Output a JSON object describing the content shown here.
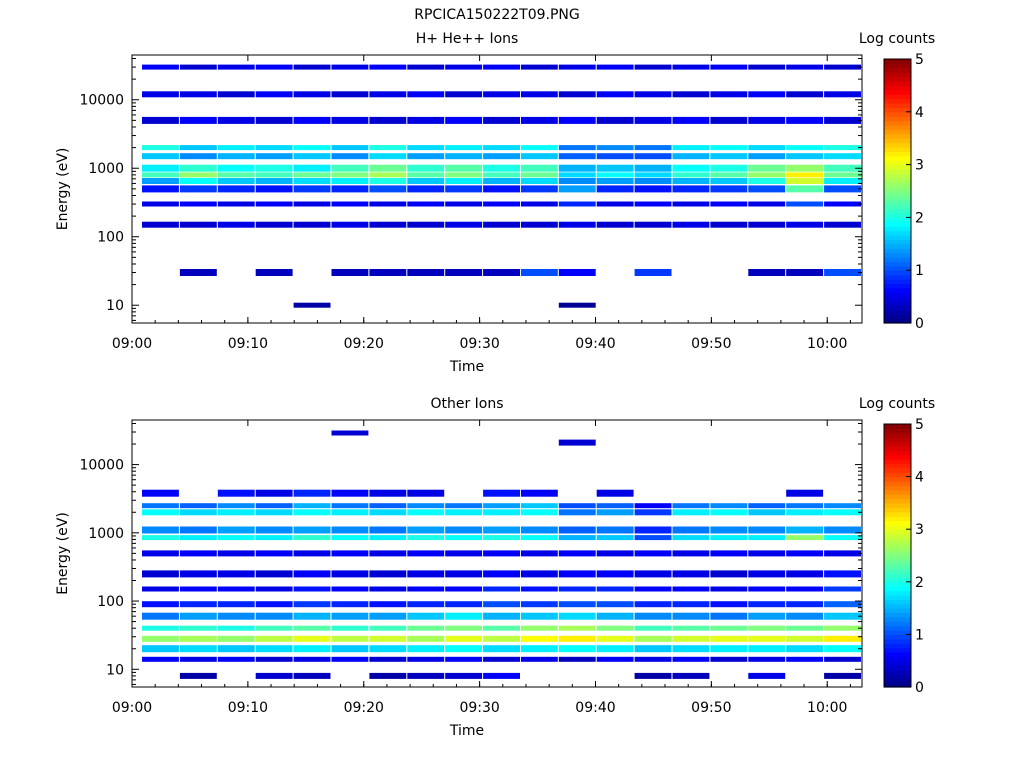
{
  "figure_title": "RPCICA150222T09.PNG",
  "chart_data": [
    {
      "type": "heatmap",
      "title": "H+ He++ Ions",
      "xlabel": "Time",
      "ylabel": "Energy (eV)",
      "x_ticks": [
        "09:00",
        "09:10",
        "09:20",
        "09:30",
        "09:40",
        "09:50",
        "10:00"
      ],
      "y_scale": "log",
      "y_ticks": [
        "10",
        "100",
        "1000",
        "10000"
      ],
      "colorbar": {
        "label": "Log counts",
        "ticks": [
          "0",
          "1",
          "2",
          "3",
          "4",
          "5"
        ],
        "range": [
          0,
          5
        ],
        "colormap": "jet"
      },
      "time_bins": [
        "09:02",
        "09:05",
        "09:08",
        "09:12",
        "09:15",
        "09:18",
        "09:21",
        "09:24",
        "09:28",
        "09:31",
        "09:34",
        "09:37",
        "09:40",
        "09:44",
        "09:47",
        "09:50",
        "09:53",
        "09:57",
        "10:00"
      ],
      "bands": [
        {
          "energy_eV": 30000,
          "log_counts": [
            0.6,
            0.4,
            0.5,
            0.6,
            0.4,
            0.5,
            0.6,
            0.4,
            0.5,
            0.6,
            0.4,
            0.5,
            0.6,
            0.4,
            0.5,
            0.6,
            0.4,
            0.5,
            0.4
          ]
        },
        {
          "energy_eV": 12000,
          "log_counts": [
            0.5,
            0.5,
            0.4,
            0.6,
            0.5,
            0.4,
            0.5,
            0.6,
            0.4,
            0.5,
            0.5,
            0.4,
            0.6,
            0.5,
            0.4,
            0.5,
            0.6,
            0.4,
            0.5
          ]
        },
        {
          "energy_eV": 5000,
          "log_counts": [
            0.4,
            0.6,
            0.5,
            0.4,
            0.6,
            0.5,
            0.4,
            0.5,
            0.6,
            0.4,
            0.5,
            0.6,
            0.4,
            0.5,
            0.6,
            0.4,
            0.5,
            0.6,
            0.4
          ]
        },
        {
          "energy_eV": 2000,
          "log_counts": [
            2.0,
            1.6,
            1.8,
            1.7,
            1.9,
            1.6,
            2.0,
            1.7,
            1.8,
            1.7,
            1.9,
            1.2,
            1.3,
            1.2,
            1.8,
            1.9,
            1.7,
            1.9,
            2.0
          ]
        },
        {
          "energy_eV": 1500,
          "log_counts": [
            1.6,
            1.3,
            1.5,
            1.4,
            1.6,
            1.3,
            1.7,
            1.4,
            1.5,
            1.4,
            1.6,
            1.1,
            1.0,
            1.0,
            1.5,
            1.6,
            1.4,
            1.6,
            1.7
          ]
        },
        {
          "energy_eV": 1000,
          "log_counts": [
            1.8,
            2.1,
            1.9,
            2.0,
            1.8,
            2.2,
            2.4,
            2.1,
            2.3,
            2.0,
            2.2,
            1.5,
            1.6,
            1.5,
            1.9,
            2.0,
            2.4,
            2.6,
            2.2
          ]
        },
        {
          "energy_eV": 800,
          "log_counts": [
            2.2,
            2.6,
            2.3,
            2.2,
            2.4,
            2.5,
            2.7,
            2.3,
            2.5,
            2.2,
            2.4,
            1.7,
            1.9,
            1.7,
            2.1,
            2.3,
            2.6,
            3.2,
            2.4
          ]
        },
        {
          "energy_eV": 650,
          "log_counts": [
            1.4,
            1.9,
            1.6,
            1.5,
            1.7,
            1.8,
            2.0,
            1.6,
            1.8,
            1.5,
            1.7,
            1.3,
            1.4,
            1.3,
            1.5,
            1.6,
            2.0,
            2.9,
            1.8
          ]
        },
        {
          "energy_eV": 500,
          "log_counts": [
            0.7,
            0.9,
            0.8,
            0.7,
            0.9,
            0.8,
            1.0,
            0.8,
            0.9,
            0.7,
            0.9,
            1.4,
            0.8,
            0.7,
            0.8,
            0.9,
            1.0,
            2.3,
            1.0
          ]
        },
        {
          "energy_eV": 300,
          "log_counts": [
            0.5,
            0.6,
            0.5,
            0.6,
            0.5,
            0.6,
            0.5,
            0.6,
            0.5,
            0.6,
            0.5,
            0.8,
            0.5,
            0.6,
            0.5,
            0.6,
            0.5,
            1.0,
            0.6
          ]
        },
        {
          "energy_eV": 150,
          "log_counts": [
            0.4,
            0.4,
            0.5,
            0.4,
            0.4,
            0.5,
            0.4,
            0.4,
            0.5,
            0.4,
            0.4,
            0.5,
            0.4,
            0.4,
            0.5,
            0.4,
            0.4,
            0.5,
            0.4
          ]
        },
        {
          "energy_eV": 30,
          "log_counts": [
            null,
            0.3,
            null,
            0.3,
            null,
            0.3,
            0.3,
            0.3,
            0.3,
            0.3,
            1.0,
            0.6,
            null,
            0.9,
            null,
            null,
            0.3,
            0.3,
            1.0
          ]
        },
        {
          "energy_eV": 10,
          "log_counts": [
            null,
            null,
            null,
            null,
            0.2,
            null,
            null,
            null,
            null,
            null,
            null,
            0.1,
            null,
            null,
            null,
            null,
            null,
            null,
            null
          ]
        }
      ]
    },
    {
      "type": "heatmap",
      "title": "Other Ions",
      "xlabel": "Time",
      "ylabel": "Energy (eV)",
      "x_ticks": [
        "09:00",
        "09:10",
        "09:20",
        "09:30",
        "09:40",
        "09:50",
        "10:00"
      ],
      "y_scale": "log",
      "y_ticks": [
        "10",
        "100",
        "1000",
        "10000"
      ],
      "colorbar": {
        "label": "Log counts",
        "ticks": [
          "0",
          "1",
          "2",
          "3",
          "4",
          "5"
        ],
        "range": [
          0,
          5
        ],
        "colormap": "jet"
      },
      "time_bins": [
        "09:02",
        "09:05",
        "09:08",
        "09:12",
        "09:15",
        "09:18",
        "09:21",
        "09:24",
        "09:28",
        "09:31",
        "09:34",
        "09:37",
        "09:40",
        "09:44",
        "09:47",
        "09:50",
        "09:53",
        "09:57",
        "10:00"
      ],
      "bands": [
        {
          "energy_eV": 29000,
          "log_counts": [
            null,
            null,
            null,
            null,
            null,
            0.4,
            null,
            null,
            null,
            null,
            null,
            null,
            null,
            null,
            null,
            null,
            null,
            null,
            null
          ]
        },
        {
          "energy_eV": 21000,
          "log_counts": [
            null,
            null,
            null,
            null,
            null,
            null,
            null,
            null,
            null,
            null,
            null,
            0.4,
            null,
            null,
            null,
            null,
            null,
            null,
            null
          ]
        },
        {
          "energy_eV": 3800,
          "log_counts": [
            0.6,
            null,
            0.7,
            0.5,
            0.8,
            0.6,
            0.5,
            0.5,
            null,
            0.7,
            0.6,
            null,
            0.5,
            null,
            null,
            null,
            null,
            0.5,
            null
          ]
        },
        {
          "energy_eV": 2500,
          "log_counts": [
            1.2,
            1.1,
            1.3,
            1.1,
            1.5,
            1.2,
            1.1,
            1.3,
            1.2,
            1.4,
            1.6,
            1.0,
            1.1,
            0.6,
            1.2,
            1.3,
            1.1,
            1.2,
            1.3
          ]
        },
        {
          "energy_eV": 2000,
          "log_counts": [
            1.9,
            1.7,
            1.8,
            1.7,
            1.9,
            1.8,
            1.7,
            1.9,
            1.8,
            1.8,
            1.9,
            1.2,
            1.4,
            0.9,
            1.8,
            1.9,
            1.6,
            1.8,
            1.9
          ]
        },
        {
          "energy_eV": 1100,
          "log_counts": [
            1.3,
            1.2,
            1.4,
            1.3,
            1.4,
            1.3,
            1.2,
            1.4,
            1.3,
            1.4,
            1.3,
            1.1,
            1.2,
            0.8,
            1.2,
            1.3,
            1.3,
            1.5,
            1.3
          ]
        },
        {
          "energy_eV": 850,
          "log_counts": [
            2.0,
            1.8,
            1.9,
            1.8,
            2.1,
            1.9,
            1.8,
            2.0,
            1.9,
            2.0,
            1.9,
            1.5,
            1.6,
            1.0,
            1.7,
            1.8,
            1.8,
            2.6,
            1.9
          ]
        },
        {
          "energy_eV": 500,
          "log_counts": [
            0.5,
            0.6,
            0.5,
            0.6,
            0.5,
            0.6,
            0.5,
            0.6,
            0.5,
            0.6,
            0.5,
            0.6,
            0.5,
            0.6,
            0.5,
            0.6,
            0.5,
            0.6,
            0.5
          ]
        },
        {
          "energy_eV": 250,
          "log_counts": [
            0.4,
            0.5,
            0.5,
            0.4,
            0.6,
            0.5,
            0.4,
            0.5,
            0.5,
            0.6,
            0.5,
            0.6,
            0.6,
            0.5,
            0.5,
            0.4,
            0.5,
            0.5,
            0.7
          ]
        },
        {
          "energy_eV": 150,
          "log_counts": [
            0.5,
            0.6,
            0.6,
            0.5,
            0.7,
            0.6,
            0.5,
            0.6,
            0.6,
            0.8,
            0.7,
            0.8,
            0.8,
            0.6,
            0.6,
            0.5,
            0.6,
            0.6,
            0.9
          ]
        },
        {
          "energy_eV": 90,
          "log_counts": [
            0.7,
            0.8,
            0.8,
            0.7,
            0.9,
            0.8,
            0.7,
            0.8,
            0.8,
            1.0,
            0.9,
            1.0,
            1.0,
            0.8,
            0.8,
            0.7,
            0.8,
            0.8,
            1.1
          ]
        },
        {
          "energy_eV": 60,
          "log_counts": [
            1.2,
            1.4,
            1.3,
            1.3,
            1.5,
            1.4,
            1.4,
            1.6,
            1.8,
            1.5,
            1.6,
            1.7,
            1.5,
            1.3,
            1.3,
            1.2,
            1.4,
            1.3,
            1.6
          ]
        },
        {
          "energy_eV": 40,
          "log_counts": [
            2.0,
            2.1,
            2.0,
            2.2,
            2.3,
            2.1,
            2.2,
            2.4,
            2.5,
            2.3,
            2.6,
            2.7,
            2.5,
            2.2,
            2.3,
            2.4,
            2.5,
            2.4,
            2.6
          ]
        },
        {
          "energy_eV": 28,
          "log_counts": [
            2.6,
            2.7,
            2.6,
            2.8,
            3.0,
            2.8,
            2.9,
            2.7,
            3.0,
            2.8,
            3.1,
            3.2,
            3.0,
            2.7,
            2.9,
            3.0,
            3.0,
            2.9,
            3.2
          ]
        },
        {
          "energy_eV": 20,
          "log_counts": [
            1.6,
            1.7,
            1.6,
            1.7,
            1.8,
            1.6,
            1.7,
            1.8,
            1.9,
            1.7,
            1.8,
            1.9,
            1.8,
            1.6,
            1.7,
            1.8,
            1.8,
            1.7,
            1.9
          ]
        },
        {
          "energy_eV": 14,
          "log_counts": [
            0.6,
            0.5,
            0.6,
            0.4,
            0.5,
            0.6,
            0.4,
            0.5,
            0.6,
            0.4,
            0.5,
            0.3,
            0.6,
            0.5,
            0.6,
            0.4,
            0.5,
            0.6,
            0.4
          ]
        },
        {
          "energy_eV": 8,
          "log_counts": [
            null,
            0.2,
            null,
            0.4,
            0.3,
            null,
            0.2,
            0.3,
            0.4,
            0.6,
            null,
            null,
            null,
            0.2,
            0.3,
            null,
            0.5,
            null,
            0.2
          ]
        }
      ]
    }
  ]
}
